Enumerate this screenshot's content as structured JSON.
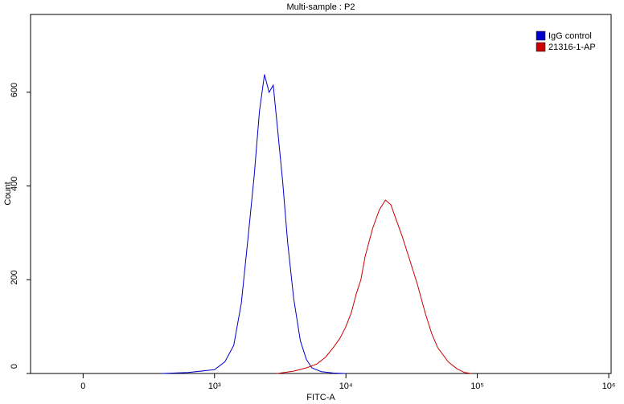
{
  "chart_data": {
    "type": "line",
    "title": "Multi-sample : P2",
    "xlabel": "FITC-A",
    "ylabel": "Count",
    "xscale": "biexponential",
    "xlim": [
      -400,
      1000000
    ],
    "xticks": [
      0,
      {
        "value": 1000,
        "label": "10³"
      },
      {
        "value": 10000,
        "label": "10⁴"
      },
      {
        "value": 100000,
        "label": "10⁵"
      },
      {
        "value": 1000000,
        "label": "10⁶"
      }
    ],
    "ylim": [
      0,
      766
    ],
    "yticks": [
      0,
      200,
      400,
      600
    ],
    "legend": "upper right",
    "series": [
      {
        "name": "IgG control",
        "color": "#0000cc",
        "x": [
          600,
          800,
          1000,
          1200,
          1400,
          1600,
          1800,
          2000,
          2200,
          2400,
          2600,
          2800,
          3000,
          3300,
          3600,
          4000,
          4500,
          5000,
          5500,
          6500,
          8000,
          10000
        ],
        "values": [
          0,
          2,
          8,
          25,
          60,
          150,
          290,
          420,
          560,
          638,
          600,
          615,
          530,
          410,
          280,
          160,
          70,
          30,
          12,
          4,
          1,
          0
        ]
      },
      {
        "name": "21316-1-AP",
        "color": "#cc0000",
        "x": [
          3000,
          4000,
          5000,
          6000,
          7000,
          8000,
          9000,
          10000,
          11000,
          12000,
          13000,
          14000,
          16000,
          18000,
          20000,
          22000,
          24000,
          27000,
          30000,
          35000,
          40000,
          45000,
          50000,
          60000,
          70000,
          80000,
          90000
        ],
        "values": [
          0,
          5,
          12,
          20,
          35,
          55,
          75,
          100,
          130,
          170,
          200,
          250,
          310,
          350,
          370,
          360,
          330,
          290,
          250,
          190,
          130,
          85,
          55,
          25,
          10,
          2,
          0
        ]
      }
    ]
  }
}
